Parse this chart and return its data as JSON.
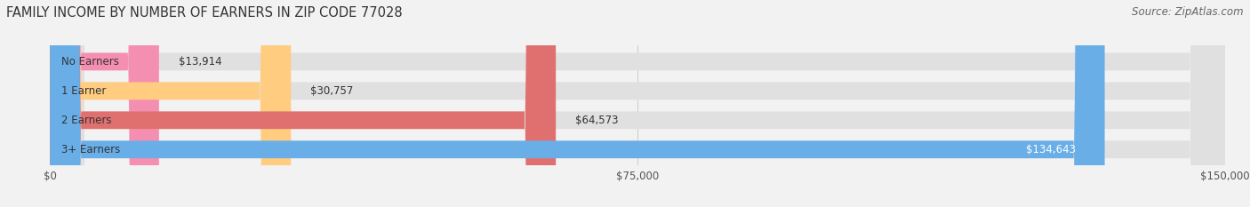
{
  "title": "FAMILY INCOME BY NUMBER OF EARNERS IN ZIP CODE 77028",
  "source": "Source: ZipAtlas.com",
  "categories": [
    "No Earners",
    "1 Earner",
    "2 Earners",
    "3+ Earners"
  ],
  "values": [
    13914,
    30757,
    64573,
    134643
  ],
  "bar_colors": [
    "#f48fb1",
    "#ffcc80",
    "#e07070",
    "#6aaee8"
  ],
  "xlim": [
    0,
    150000
  ],
  "xticks": [
    0,
    75000,
    150000
  ],
  "xtick_labels": [
    "$0",
    "$75,000",
    "$150,000"
  ],
  "value_labels": [
    "$13,914",
    "$30,757",
    "$64,573",
    "$134,643"
  ],
  "bg_color": "#f2f2f2",
  "bar_bg_color": "#e0e0e0",
  "title_fontsize": 10.5,
  "source_fontsize": 8.5,
  "label_fontsize": 8.5,
  "value_fontsize": 8.5,
  "tick_fontsize": 8.5,
  "bar_height": 0.6,
  "figsize": [
    14.06,
    2.33
  ],
  "dpi": 100
}
